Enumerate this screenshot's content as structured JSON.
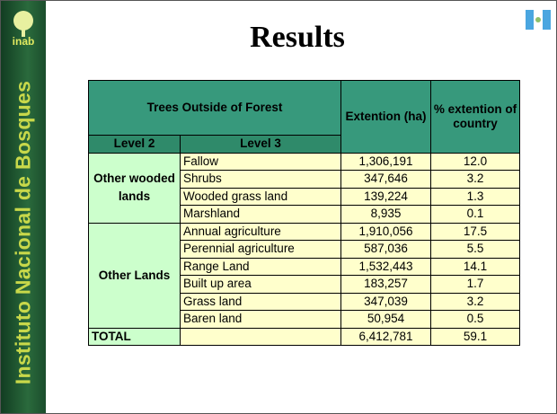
{
  "sidebar": {
    "logo": "inab",
    "text": "Instituto Nacional de Bosques"
  },
  "title": "Results",
  "table": {
    "header": {
      "title": "Trees Outside of Forest",
      "extent": "Extention (ha)",
      "percent": "% extention of country",
      "level2": "Level 2",
      "level3": "Level 3"
    },
    "groups": [
      {
        "label": "Other wooded lands",
        "rows": [
          [
            "Fallow",
            "1,306,191",
            "12.0"
          ],
          [
            "Shrubs",
            "347,646",
            "3.2"
          ],
          [
            "Wooded grass land",
            "139,224",
            "1.3"
          ],
          [
            "Marshland",
            "8,935",
            "0.1"
          ]
        ]
      },
      {
        "label": "Other Lands",
        "rows": [
          [
            "Annual agriculture",
            "1,910,056",
            "17.5"
          ],
          [
            "Perennial agriculture",
            "587,036",
            "5.5"
          ],
          [
            "Range Land",
            "1,532,443",
            "14.1"
          ],
          [
            "Built up area",
            "183,257",
            "1.7"
          ],
          [
            "Grass land",
            "347,039",
            "3.2"
          ],
          [
            "Baren land",
            "50,954",
            "0.5"
          ]
        ]
      }
    ],
    "total": {
      "label": "TOTAL",
      "extent": "6,412,781",
      "percent": "59.1"
    }
  }
}
